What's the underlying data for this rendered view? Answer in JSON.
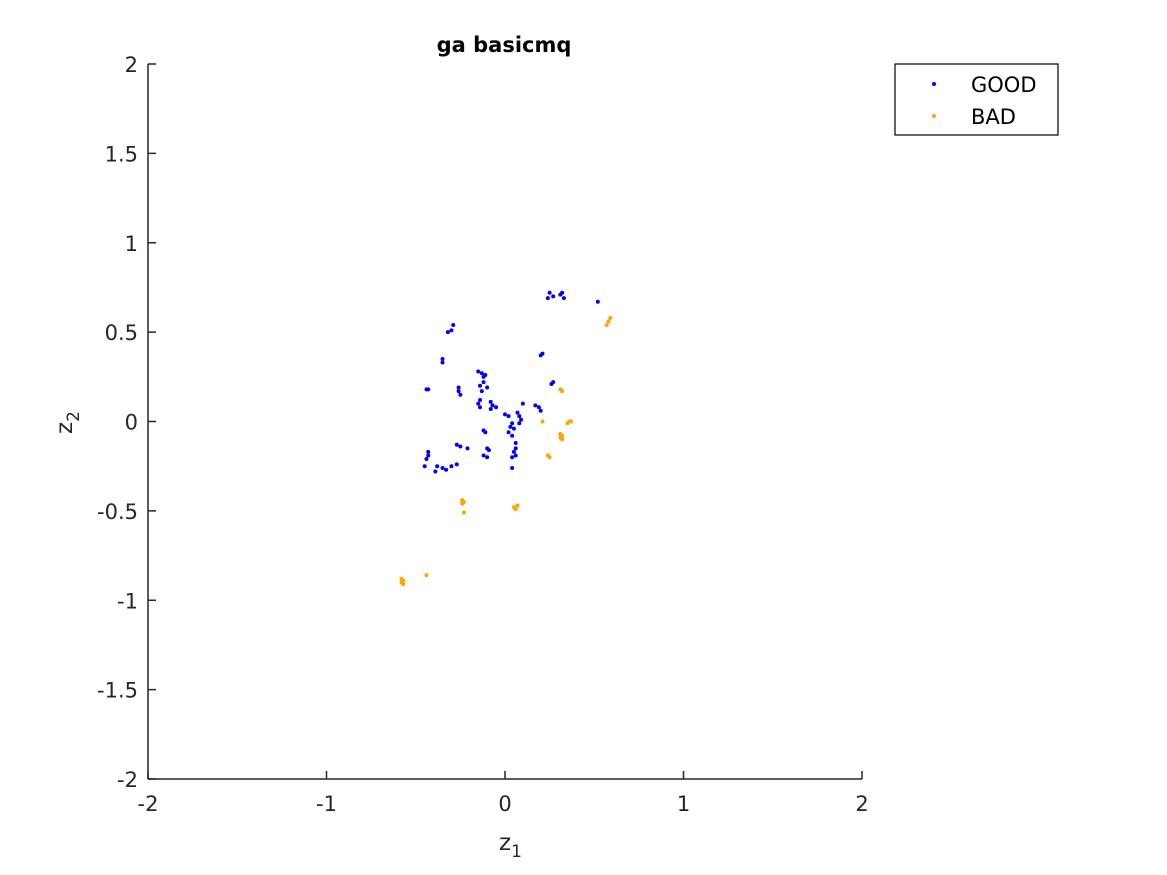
{
  "chart_data": {
    "type": "scatter",
    "title": "ga basicmq",
    "xlabel": "z",
    "xlabel_sub": "1",
    "ylabel": "z",
    "ylabel_sub": "2",
    "xlim": [
      -2,
      2
    ],
    "ylim": [
      -2,
      2
    ],
    "xticks": [
      -2,
      -1,
      0,
      1,
      2
    ],
    "yticks": [
      -2,
      -1.5,
      -1,
      -0.5,
      0,
      0.5,
      1,
      1.5,
      2
    ],
    "xtick_labels": [
      "-2",
      "-1",
      "0",
      "1",
      "2"
    ],
    "ytick_labels": [
      "-2",
      "-1.5",
      "-1",
      "-0.5",
      "0",
      "0.5",
      "1",
      "1.5",
      "2"
    ],
    "grid": false,
    "legend_position": "top-right",
    "series": [
      {
        "name": "GOOD",
        "color": "#0000ff",
        "points": [
          [
            0.24,
            0.69
          ],
          [
            0.25,
            0.72
          ],
          [
            0.27,
            0.7
          ],
          [
            0.31,
            0.71
          ],
          [
            0.32,
            0.72
          ],
          [
            0.33,
            0.69
          ],
          [
            0.52,
            0.67
          ],
          [
            -0.32,
            0.5
          ],
          [
            -0.3,
            0.51
          ],
          [
            -0.29,
            0.54
          ],
          [
            -0.35,
            0.33
          ],
          [
            -0.35,
            0.35
          ],
          [
            0.2,
            0.37
          ],
          [
            0.21,
            0.38
          ],
          [
            -0.15,
            0.28
          ],
          [
            -0.13,
            0.27
          ],
          [
            -0.12,
            0.25
          ],
          [
            -0.11,
            0.26
          ],
          [
            -0.12,
            0.22
          ],
          [
            -0.14,
            0.2
          ],
          [
            -0.1,
            0.19
          ],
          [
            -0.13,
            0.17
          ],
          [
            -0.44,
            0.18
          ],
          [
            -0.43,
            0.18
          ],
          [
            -0.26,
            0.19
          ],
          [
            -0.26,
            0.17
          ],
          [
            -0.25,
            0.15
          ],
          [
            0.26,
            0.21
          ],
          [
            0.27,
            0.22
          ],
          [
            -0.14,
            0.12
          ],
          [
            -0.15,
            0.1
          ],
          [
            -0.14,
            0.08
          ],
          [
            -0.08,
            0.11
          ],
          [
            -0.07,
            0.09
          ],
          [
            -0.08,
            0.07
          ],
          [
            -0.05,
            0.08
          ],
          [
            0.1,
            0.1
          ],
          [
            0.17,
            0.09
          ],
          [
            0.19,
            0.08
          ],
          [
            0.2,
            0.06
          ],
          [
            0.0,
            0.04
          ],
          [
            0.02,
            0.03
          ],
          [
            0.07,
            0.05
          ],
          [
            0.08,
            0.03
          ],
          [
            0.09,
            0.01
          ],
          [
            0.08,
            -0.01
          ],
          [
            0.04,
            -0.01
          ],
          [
            0.03,
            -0.03
          ],
          [
            0.05,
            -0.04
          ],
          [
            0.02,
            -0.06
          ],
          [
            0.04,
            -0.08
          ],
          [
            -0.11,
            -0.06
          ],
          [
            -0.12,
            -0.05
          ],
          [
            -0.27,
            -0.13
          ],
          [
            -0.25,
            -0.14
          ],
          [
            -0.21,
            -0.15
          ],
          [
            -0.1,
            -0.15
          ],
          [
            -0.09,
            -0.16
          ],
          [
            -0.12,
            -0.19
          ],
          [
            -0.1,
            -0.2
          ],
          [
            0.06,
            -0.12
          ],
          [
            0.06,
            -0.15
          ],
          [
            0.05,
            -0.17
          ],
          [
            0.06,
            -0.19
          ],
          [
            0.04,
            -0.2
          ],
          [
            0.04,
            -0.26
          ],
          [
            -0.43,
            -0.17
          ],
          [
            -0.43,
            -0.19
          ],
          [
            -0.44,
            -0.21
          ],
          [
            -0.45,
            -0.25
          ],
          [
            -0.38,
            -0.25
          ],
          [
            -0.35,
            -0.26
          ],
          [
            -0.33,
            -0.27
          ],
          [
            -0.3,
            -0.25
          ],
          [
            -0.27,
            -0.24
          ],
          [
            -0.39,
            -0.28
          ]
        ]
      },
      {
        "name": "BAD",
        "color": "#ffa500",
        "points": [
          [
            0.57,
            0.54
          ],
          [
            0.58,
            0.56
          ],
          [
            0.59,
            0.58
          ],
          [
            0.31,
            0.18
          ],
          [
            0.32,
            0.17
          ],
          [
            0.21,
            0.0
          ],
          [
            0.35,
            -0.01
          ],
          [
            0.36,
            0.0
          ],
          [
            0.37,
            0.0
          ],
          [
            0.31,
            -0.07
          ],
          [
            0.31,
            -0.09
          ],
          [
            0.32,
            -0.1
          ],
          [
            0.32,
            -0.08
          ],
          [
            0.24,
            -0.19
          ],
          [
            0.25,
            -0.2
          ],
          [
            -0.24,
            -0.44
          ],
          [
            -0.23,
            -0.45
          ],
          [
            -0.24,
            -0.46
          ],
          [
            -0.23,
            -0.51
          ],
          [
            0.05,
            -0.48
          ],
          [
            0.06,
            -0.49
          ],
          [
            0.07,
            -0.47
          ],
          [
            -0.44,
            -0.86
          ],
          [
            -0.58,
            -0.88
          ],
          [
            -0.57,
            -0.89
          ],
          [
            -0.58,
            -0.9
          ],
          [
            -0.57,
            -0.91
          ]
        ]
      }
    ]
  }
}
